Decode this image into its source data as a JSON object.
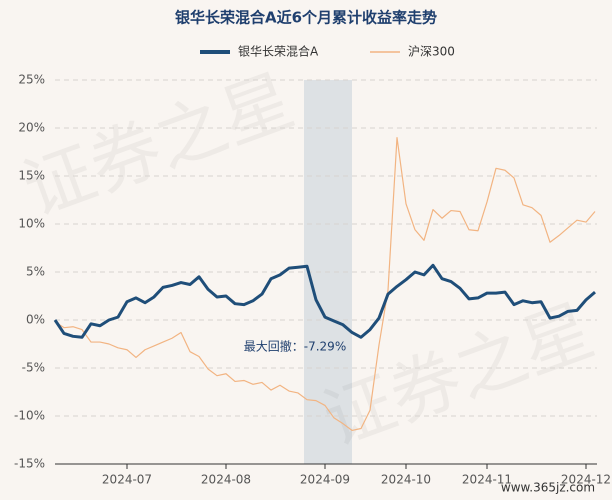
{
  "chart_data": {
    "type": "line",
    "title": "银华长荣混合A近6个月累计收益率走势",
    "annotation": "最大回撤：-7.29%",
    "watermark": "证券之星",
    "source_mark": "www.365jz.com",
    "x": [
      null,
      null,
      null,
      null,
      null,
      null,
      null,
      null,
      "2024-07",
      null,
      null,
      null,
      null,
      null,
      null,
      null,
      null,
      null,
      null,
      "2024-08",
      null,
      null,
      null,
      null,
      null,
      null,
      null,
      null,
      null,
      null,
      "2024-09",
      null,
      null,
      null,
      null,
      null,
      null,
      null,
      null,
      "2024-10",
      null,
      null,
      null,
      null,
      null,
      null,
      null,
      null,
      "2024-11",
      null,
      null,
      null,
      null,
      null,
      null,
      null,
      null,
      null,
      null,
      "2024-12",
      null
    ],
    "series": [
      {
        "name": "银华长荣混合A",
        "color": "#1f4e79",
        "values": [
          0.0,
          -1.4,
          -1.7,
          -1.8,
          -0.4,
          -0.6,
          0.0,
          0.3,
          1.9,
          2.3,
          1.8,
          2.4,
          3.4,
          3.6,
          3.9,
          3.7,
          4.5,
          3.2,
          2.4,
          2.5,
          1.7,
          1.6,
          2.0,
          2.7,
          4.3,
          4.7,
          5.4,
          5.5,
          5.6,
          2.1,
          0.3,
          -0.1,
          -0.5,
          -1.3,
          -1.8,
          -1.0,
          0.2,
          2.7,
          3.5,
          4.2,
          5.0,
          4.7,
          5.7,
          4.3,
          4.0,
          3.3,
          2.2,
          2.3,
          2.8,
          2.8,
          2.9,
          1.6,
          2.0,
          1.8,
          1.9,
          0.2,
          0.4,
          0.9,
          1.0,
          2.1,
          2.9
        ]
      },
      {
        "name": "沪深300",
        "color": "#f2b482",
        "values": [
          -0.2,
          -0.8,
          -0.7,
          -1.0,
          -2.3,
          -2.3,
          -2.5,
          -2.9,
          -3.1,
          -3.9,
          -3.1,
          -2.7,
          -2.3,
          -1.9,
          -1.3,
          -3.3,
          -3.8,
          -5.1,
          -5.8,
          -5.6,
          -6.4,
          -6.3,
          -6.7,
          -6.5,
          -7.3,
          -6.8,
          -7.4,
          -7.6,
          -8.3,
          -8.4,
          -8.9,
          -10.2,
          -10.8,
          -11.5,
          -11.3,
          -9.4,
          -2.6,
          3.1,
          19.0,
          12.1,
          9.4,
          8.3,
          11.5,
          10.6,
          11.4,
          11.3,
          9.4,
          9.3,
          12.3,
          15.8,
          15.6,
          14.8,
          12.0,
          11.7,
          10.9,
          8.1,
          8.8,
          9.6,
          10.4,
          10.2,
          11.3
        ]
      }
    ],
    "ylim": [
      -15,
      25
    ],
    "yticks": [
      {
        "value": -15,
        "label": "-15%"
      },
      {
        "value": -10,
        "label": "-10%"
      },
      {
        "value": -5,
        "label": "-5%"
      },
      {
        "value": 0,
        "label": "0%"
      },
      {
        "value": 5,
        "label": "5%"
      },
      {
        "value": 10,
        "label": "10%"
      },
      {
        "value": 15,
        "label": "15%"
      },
      {
        "value": 20,
        "label": "20%"
      },
      {
        "value": 25,
        "label": "25%"
      }
    ],
    "grid": true
  }
}
